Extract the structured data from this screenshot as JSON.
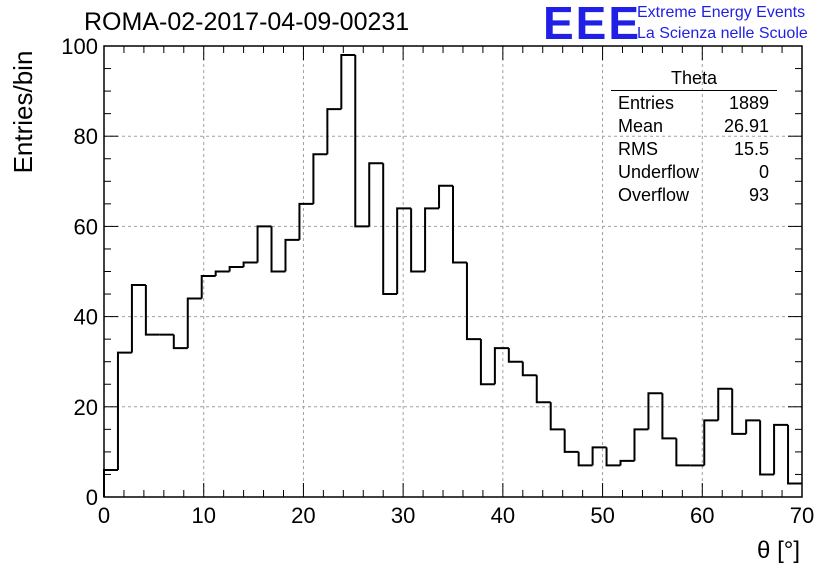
{
  "title": "ROMA-02-2017-04-09-00231",
  "logo": {
    "text": "EEE",
    "line1": "Extreme Energy Events",
    "line2": "La Scienza nelle Scuole"
  },
  "stats": {
    "name": "Theta",
    "rows": [
      {
        "label": "Entries",
        "value": "1889"
      },
      {
        "label": "Mean",
        "value": "26.91"
      },
      {
        "label": "RMS",
        "value": "15.5"
      },
      {
        "label": "Underflow",
        "value": "0"
      },
      {
        "label": "Overflow",
        "value": "93"
      }
    ]
  },
  "colors": {
    "line": "#000000",
    "grid": "#a0a0a0",
    "logo": "#1f1fe6"
  },
  "chart_data": {
    "type": "histogram",
    "title": "ROMA-02-2017-04-09-00231",
    "xlabel": "θ [°]",
    "ylabel": "Entries/bin",
    "xlim": [
      0,
      70
    ],
    "ylim": [
      0,
      100
    ],
    "grid": true,
    "x_ticks": [
      0,
      10,
      20,
      30,
      40,
      50,
      60,
      70
    ],
    "y_ticks": [
      0,
      20,
      40,
      60,
      80,
      100
    ],
    "bin_width": 1.4,
    "bin_edges_start": 0,
    "values": [
      6,
      32,
      47,
      36,
      36,
      33,
      44,
      49,
      50,
      51,
      52,
      60,
      50,
      57,
      65,
      76,
      86,
      98,
      60,
      74,
      45,
      64,
      50,
      64,
      69,
      52,
      35,
      25,
      33,
      30,
      27,
      21,
      15,
      10,
      7,
      11,
      7,
      8,
      15,
      23,
      13,
      7,
      7,
      17,
      24,
      14,
      17,
      5,
      16,
      3
    ]
  }
}
